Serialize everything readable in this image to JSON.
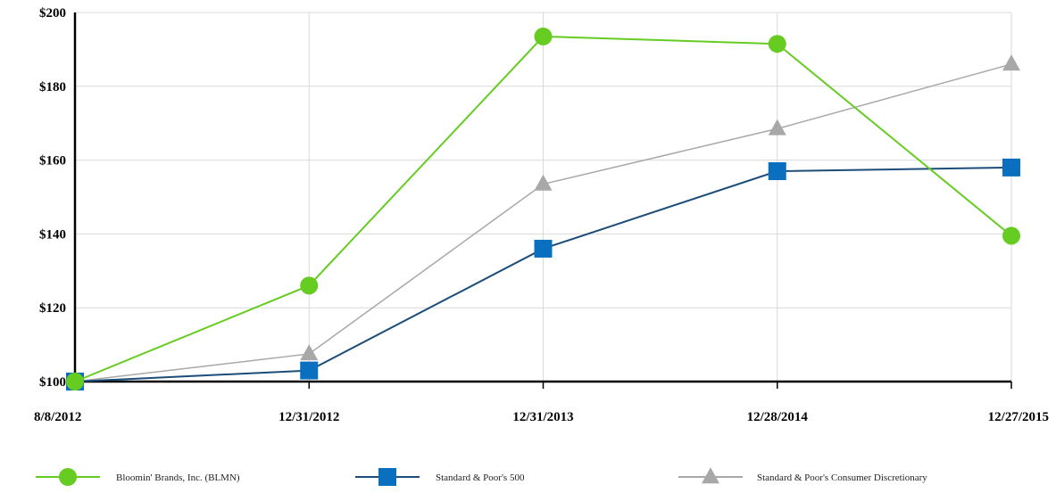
{
  "chart_data": {
    "type": "line",
    "categories": [
      "8/8/2012",
      "12/31/2012",
      "12/31/2013",
      "12/28/2014",
      "12/27/2015"
    ],
    "ylim": [
      100,
      200
    ],
    "yticks": [
      "$100",
      "$120",
      "$140",
      "$160",
      "$180",
      "$200"
    ],
    "ytick_values": [
      100,
      120,
      140,
      160,
      180,
      200
    ],
    "grid": true,
    "legend_position": "bottom",
    "series": [
      {
        "name": "Bloomin' Brands, Inc. (BLMN)",
        "marker": "circle",
        "color": "#66cc22",
        "values": [
          100,
          126,
          193.5,
          191.5,
          139.5
        ]
      },
      {
        "name": "Standard & Poor's 500",
        "marker": "square",
        "color": "#0b6fbf",
        "line_color": "#1c4d78",
        "values": [
          100,
          103,
          136,
          157,
          158
        ]
      },
      {
        "name": "Standard & Poor's Consumer Discretionary",
        "marker": "triangle",
        "color": "#a8a8a8",
        "values": [
          100,
          107.5,
          153.5,
          168.5,
          186
        ]
      }
    ]
  }
}
